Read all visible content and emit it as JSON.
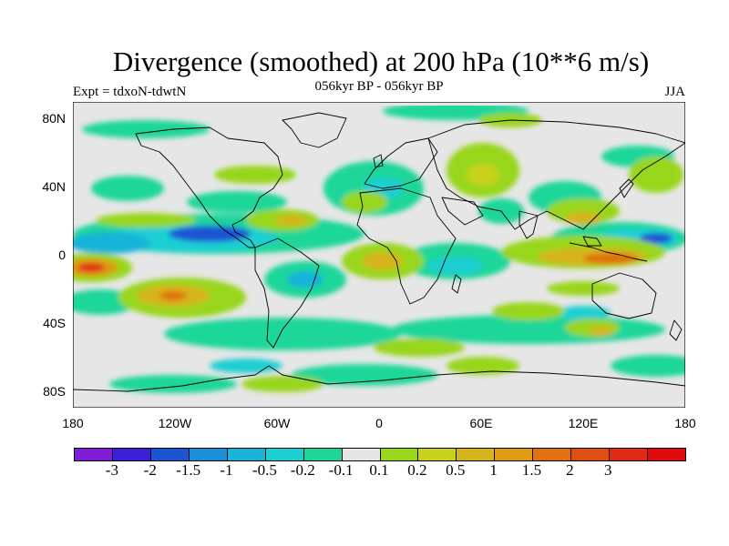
{
  "title": "Divergence (smoothed) at 200 hPa (10**6 m/s)",
  "subtitle_left": "Expt = tdxoN-tdwtN",
  "subtitle_center": "056kyr BP - 056kyr BP",
  "subtitle_right": "JJA",
  "lat_labels": [
    "80N",
    "40N",
    "0",
    "40S",
    "80S"
  ],
  "lon_labels": [
    "180",
    "120W",
    "60W",
    "0",
    "60E",
    "120E",
    "180"
  ],
  "colorbar": {
    "colors": [
      "#7f1dd8",
      "#3a20d8",
      "#1b55d4",
      "#1b8ed8",
      "#19b4d8",
      "#1ccfd2",
      "#1ed69a",
      "#e6e6e6",
      "#98d61a",
      "#c8d21a",
      "#d6b41c",
      "#de9a12",
      "#e07010",
      "#e04d10",
      "#e02a14",
      "#e00a0a"
    ],
    "labels": [
      "-3",
      "-2",
      "-1.5",
      "-1",
      "-0.5",
      "-0.2",
      "-0.1",
      "0.1",
      "0.2",
      "0.5",
      "1",
      "1.5",
      "2",
      "3"
    ]
  }
}
